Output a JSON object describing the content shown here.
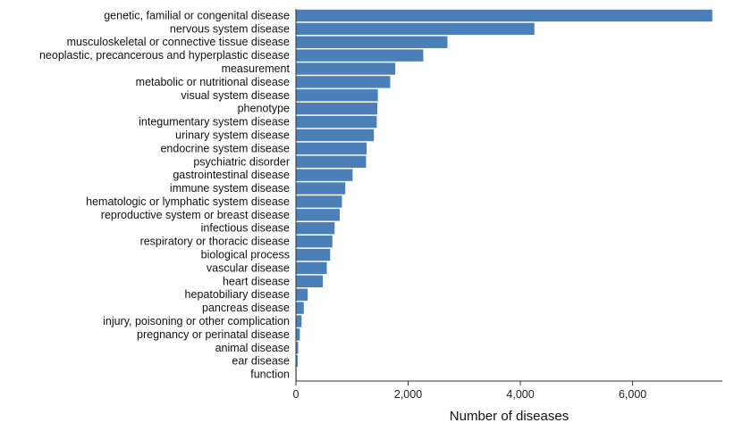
{
  "chart_data": {
    "type": "bar",
    "orientation": "horizontal",
    "title": "",
    "xlabel": "Number of diseases",
    "ylabel": "",
    "xlim": [
      0,
      7600
    ],
    "xticks": [
      0,
      2000,
      4000,
      6000
    ],
    "xtick_labels": [
      "0",
      "2,000",
      "4,000",
      "6,000"
    ],
    "grid": false,
    "bar_color": "#4a7fb8",
    "categories": [
      "genetic, familial or congenital disease",
      "nervous system disease",
      "musculoskeletal or connective tissue disease",
      "neoplastic, precancerous and hyperplastic disease",
      "measurement",
      "metabolic or nutritional disease",
      "visual system disease",
      "phenotype",
      "integumentary system disease",
      "urinary system disease",
      "endocrine system disease",
      "psychiatric disorder",
      "gastrointestinal disease",
      "immune system disease",
      "hematologic or lymphatic system disease",
      "reproductive system or breast disease",
      "infectious disease",
      "respiratory or thoracic disease",
      "biological process",
      "vascular disease",
      "heart disease",
      "hepatobiliary disease",
      "pancreas disease",
      "injury, poisoning or other complication",
      "pregnancy or perinatal disease",
      "animal disease",
      "ear disease",
      "function"
    ],
    "values": [
      7420,
      4250,
      2700,
      2270,
      1770,
      1680,
      1460,
      1450,
      1440,
      1390,
      1260,
      1250,
      1010,
      880,
      820,
      780,
      690,
      650,
      610,
      550,
      480,
      210,
      140,
      100,
      70,
      40,
      30,
      10
    ]
  }
}
